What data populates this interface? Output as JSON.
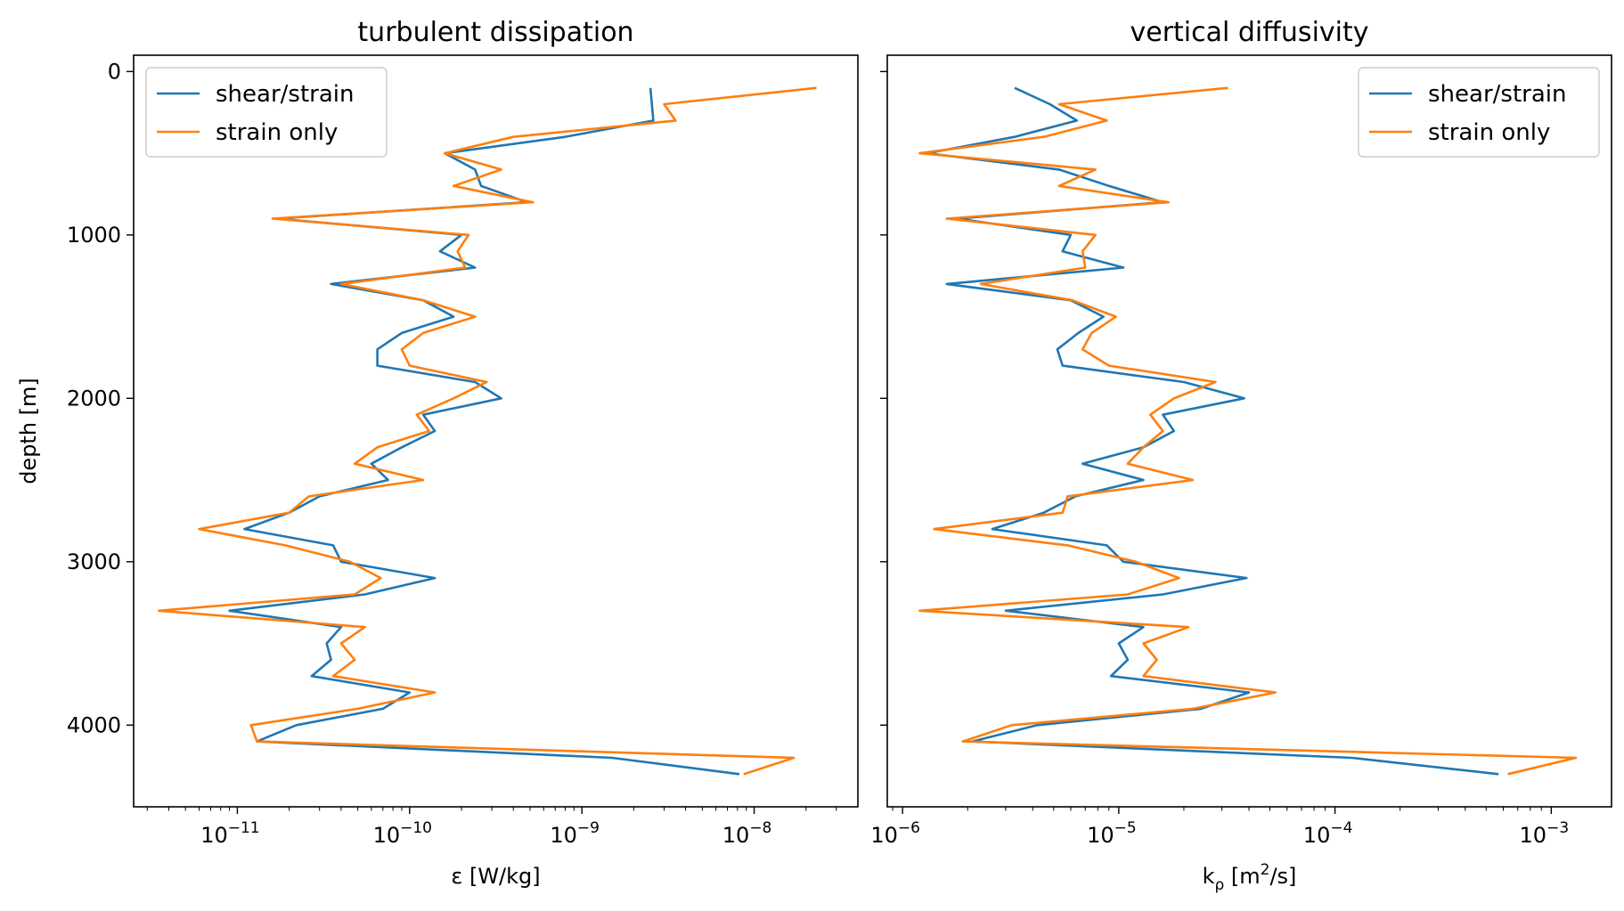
{
  "chart_data": [
    {
      "type": "line",
      "title": "turbulent dissipation",
      "xlabel": "ε [W/kg]",
      "ylabel": "depth [m]",
      "xscale": "log",
      "xlim": [
        2.5e-12,
        4e-08
      ],
      "ylim": [
        4500,
        -100
      ],
      "y_inverted": true,
      "xticks": [
        {
          "base": "10",
          "exp": "−11",
          "value": 1e-11
        },
        {
          "base": "10",
          "exp": "−10",
          "value": 1e-10
        },
        {
          "base": "10",
          "exp": "−9",
          "value": 1e-09
        },
        {
          "base": "10",
          "exp": "−8",
          "value": 1e-08
        }
      ],
      "yticks": [
        "0",
        "1000",
        "2000",
        "3000",
        "4000"
      ],
      "legend": {
        "placement": "top-left"
      },
      "series": [
        {
          "name": "shear/strain",
          "color": "#1f77b4",
          "points": [
            [
              2.5e-09,
              100
            ],
            [
              2.6e-09,
              300
            ],
            [
              8e-10,
              400
            ],
            [
              1.6e-10,
              500
            ],
            [
              2.4e-10,
              600
            ],
            [
              2.6e-10,
              700
            ],
            [
              4.8e-10,
              800
            ],
            [
              1.7e-11,
              900
            ],
            [
              2e-10,
              1000
            ],
            [
              1.5e-10,
              1100
            ],
            [
              2.4e-10,
              1200
            ],
            [
              3.5e-11,
              1300
            ],
            [
              1.2e-10,
              1400
            ],
            [
              1.8e-10,
              1500
            ],
            [
              9e-11,
              1600
            ],
            [
              6.5e-11,
              1700
            ],
            [
              6.5e-11,
              1800
            ],
            [
              2.4e-10,
              1900
            ],
            [
              3.4e-10,
              2000
            ],
            [
              1.2e-10,
              2100
            ],
            [
              1.4e-10,
              2200
            ],
            [
              9e-11,
              2300
            ],
            [
              6e-11,
              2400
            ],
            [
              7.5e-11,
              2500
            ],
            [
              3e-11,
              2600
            ],
            [
              2e-11,
              2700
            ],
            [
              1.1e-11,
              2800
            ],
            [
              3.6e-11,
              2900
            ],
            [
              4e-11,
              3000
            ],
            [
              1.4e-10,
              3100
            ],
            [
              5.5e-11,
              3200
            ],
            [
              9e-12,
              3300
            ],
            [
              4e-11,
              3400
            ],
            [
              3.3e-11,
              3500
            ],
            [
              3.5e-11,
              3600
            ],
            [
              2.7e-11,
              3700
            ],
            [
              1e-10,
              3800
            ],
            [
              7e-11,
              3900
            ],
            [
              2.2e-11,
              4000
            ],
            [
              1.3e-11,
              4100
            ],
            [
              1.5e-09,
              4200
            ],
            [
              8.2e-09,
              4300
            ]
          ]
        },
        {
          "name": "strain only",
          "color": "#ff7f0e",
          "points": [
            [
              2.3e-08,
              100
            ],
            [
              3e-09,
              200
            ],
            [
              3.5e-09,
              300
            ],
            [
              4e-10,
              400
            ],
            [
              1.6e-10,
              500
            ],
            [
              3.4e-10,
              600
            ],
            [
              1.8e-10,
              700
            ],
            [
              5.2e-10,
              800
            ],
            [
              1.6e-11,
              900
            ],
            [
              2.2e-10,
              1000
            ],
            [
              1.9e-10,
              1100
            ],
            [
              2.1e-10,
              1200
            ],
            [
              4e-11,
              1300
            ],
            [
              1.2e-10,
              1400
            ],
            [
              2.4e-10,
              1500
            ],
            [
              1.2e-10,
              1600
            ],
            [
              9e-11,
              1700
            ],
            [
              1e-10,
              1800
            ],
            [
              2.8e-10,
              1900
            ],
            [
              1.8e-10,
              2000
            ],
            [
              1.1e-10,
              2100
            ],
            [
              1.3e-10,
              2200
            ],
            [
              6.5e-11,
              2300
            ],
            [
              4.8e-11,
              2400
            ],
            [
              1.2e-10,
              2500
            ],
            [
              2.6e-11,
              2600
            ],
            [
              2e-11,
              2700
            ],
            [
              6e-12,
              2800
            ],
            [
              1.9e-11,
              2900
            ],
            [
              4.5e-11,
              3000
            ],
            [
              6.8e-11,
              3100
            ],
            [
              4.8e-11,
              3200
            ],
            [
              3.5e-12,
              3300
            ],
            [
              5.5e-11,
              3400
            ],
            [
              4e-11,
              3500
            ],
            [
              4.8e-11,
              3600
            ],
            [
              3.6e-11,
              3700
            ],
            [
              1.4e-10,
              3800
            ],
            [
              5e-11,
              3900
            ],
            [
              1.2e-11,
              4000
            ],
            [
              1.3e-11,
              4100
            ],
            [
              1.7e-08,
              4200
            ],
            [
              8.7e-09,
              4300
            ]
          ]
        }
      ]
    },
    {
      "type": "line",
      "title": "vertical diffusivity",
      "xlabel_base": "k",
      "xlabel_sub": "ρ",
      "xlabel_mid": " [m",
      "xlabel_sup": "2",
      "xlabel_end": "/s]",
      "xscale": "log",
      "xlim": [
        8.5e-07,
        0.0019
      ],
      "ylim": [
        4500,
        -100
      ],
      "y_inverted": true,
      "y_tick_labels": false,
      "xticks": [
        {
          "base": "10",
          "exp": "−6",
          "value": 1e-06
        },
        {
          "base": "10",
          "exp": "−5",
          "value": 1e-05
        },
        {
          "base": "10",
          "exp": "−4",
          "value": 0.0001
        },
        {
          "base": "10",
          "exp": "−3",
          "value": 0.001
        }
      ],
      "legend": {
        "placement": "top-right"
      },
      "series": [
        {
          "name": "shear/strain",
          "color": "#1f77b4",
          "points": [
            [
              3.3e-06,
              100
            ],
            [
              4.8e-06,
              200
            ],
            [
              6.4e-06,
              300
            ],
            [
              3.3e-06,
              400
            ],
            [
              1.3e-06,
              500
            ],
            [
              5.3e-06,
              600
            ],
            [
              9e-06,
              700
            ],
            [
              1.6e-05,
              800
            ],
            [
              1.8e-06,
              900
            ],
            [
              6e-06,
              1000
            ],
            [
              5.5e-06,
              1100
            ],
            [
              1.05e-05,
              1200
            ],
            [
              1.6e-06,
              1300
            ],
            [
              6e-06,
              1400
            ],
            [
              8.5e-06,
              1500
            ],
            [
              6.5e-06,
              1600
            ],
            [
              5.2e-06,
              1700
            ],
            [
              5.5e-06,
              1800
            ],
            [
              2e-05,
              1900
            ],
            [
              3.8e-05,
              2000
            ],
            [
              1.6e-05,
              2100
            ],
            [
              1.8e-05,
              2200
            ],
            [
              1.3e-05,
              2300
            ],
            [
              6.8e-06,
              2400
            ],
            [
              1.3e-05,
              2500
            ],
            [
              6.3e-06,
              2600
            ],
            [
              4.5e-06,
              2700
            ],
            [
              2.6e-06,
              2800
            ],
            [
              8.8e-06,
              2900
            ],
            [
              1.05e-05,
              3000
            ],
            [
              3.9e-05,
              3100
            ],
            [
              1.6e-05,
              3200
            ],
            [
              3e-06,
              3300
            ],
            [
              1.3e-05,
              3400
            ],
            [
              1e-05,
              3500
            ],
            [
              1.1e-05,
              3600
            ],
            [
              9.2e-06,
              3700
            ],
            [
              4e-05,
              3800
            ],
            [
              2.4e-05,
              3900
            ],
            [
              4.2e-06,
              4000
            ],
            [
              2.1e-06,
              4100
            ],
            [
              0.00012,
              4200
            ],
            [
              0.00057,
              4300
            ]
          ]
        },
        {
          "name": "strain only",
          "color": "#ff7f0e",
          "points": [
            [
              3.2e-05,
              100
            ],
            [
              5.3e-06,
              200
            ],
            [
              8.8e-06,
              300
            ],
            [
              4.5e-06,
              400
            ],
            [
              1.2e-06,
              500
            ],
            [
              7.8e-06,
              600
            ],
            [
              5.3e-06,
              700
            ],
            [
              1.7e-05,
              800
            ],
            [
              1.6e-06,
              900
            ],
            [
              7.8e-06,
              1000
            ],
            [
              6.8e-06,
              1100
            ],
            [
              7e-06,
              1200
            ],
            [
              2.3e-06,
              1300
            ],
            [
              6.1e-06,
              1400
            ],
            [
              9.7e-06,
              1500
            ],
            [
              7.5e-06,
              1600
            ],
            [
              6.8e-06,
              1700
            ],
            [
              9e-06,
              1800
            ],
            [
              2.8e-05,
              1900
            ],
            [
              1.8e-05,
              2000
            ],
            [
              1.4e-05,
              2100
            ],
            [
              1.6e-05,
              2200
            ],
            [
              1.3e-05,
              2300
            ],
            [
              1.1e-05,
              2400
            ],
            [
              2.2e-05,
              2500
            ],
            [
              5.8e-06,
              2600
            ],
            [
              5.5e-06,
              2700
            ],
            [
              1.4e-06,
              2800
            ],
            [
              5.8e-06,
              2900
            ],
            [
              1.2e-05,
              3000
            ],
            [
              1.9e-05,
              3100
            ],
            [
              1.1e-05,
              3200
            ],
            [
              1.2e-06,
              3300
            ],
            [
              2.1e-05,
              3400
            ],
            [
              1.3e-05,
              3500
            ],
            [
              1.5e-05,
              3600
            ],
            [
              1.3e-05,
              3700
            ],
            [
              5.3e-05,
              3800
            ],
            [
              2.2e-05,
              3900
            ],
            [
              3.2e-06,
              4000
            ],
            [
              1.9e-06,
              4100
            ],
            [
              0.0013,
              4200
            ],
            [
              0.00063,
              4300
            ]
          ]
        }
      ]
    }
  ]
}
